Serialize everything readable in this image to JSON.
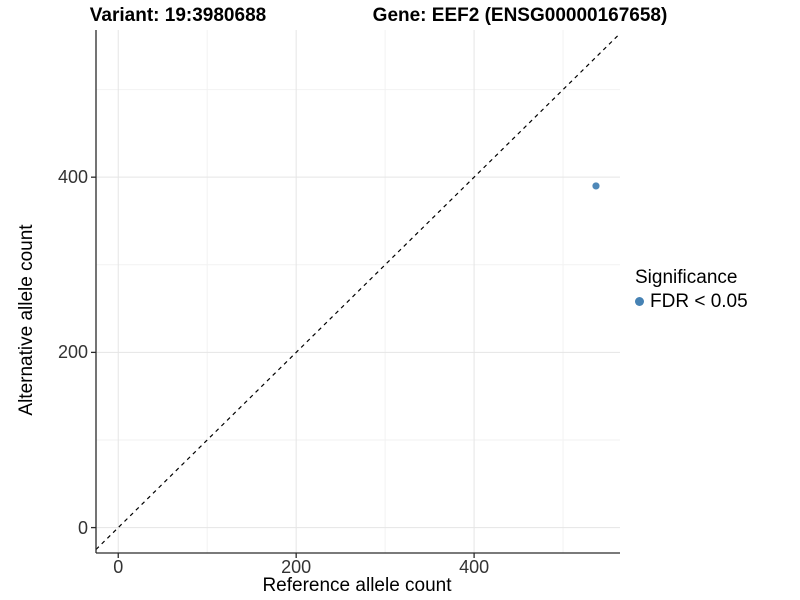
{
  "header": {
    "variant_title": "Variant: 19:3980688",
    "gene_title": "Gene: EEF2 (ENSG00000167658)"
  },
  "legend": {
    "title": "Significance",
    "items": [
      {
        "label": "FDR < 0.05",
        "color": "#4682b4",
        "marker": "dot-icon"
      }
    ]
  },
  "chart_data": {
    "type": "scatter",
    "title": "Variant: 19:3980688 — Gene: EEF2 (ENSG00000167658)",
    "xlabel": "Reference allele count",
    "ylabel": "Alternative allele count",
    "xlim": [
      -25,
      564
    ],
    "ylim": [
      -29,
      568
    ],
    "x_ticks": [
      0,
      200,
      400
    ],
    "y_ticks": [
      0,
      200,
      400
    ],
    "x_minor_ticks": [
      100,
      300,
      500
    ],
    "y_minor_ticks": [
      100,
      300,
      500
    ],
    "grid": "major and minor gridlines, white background",
    "legend_position": "right",
    "reference_line": {
      "type": "identity y=x",
      "style": "dashed",
      "color": "#000000",
      "slope": 1,
      "intercept": 0
    },
    "series": [
      {
        "name": "FDR < 0.05",
        "color": "#4682b4",
        "points": [
          {
            "x": 537,
            "y": 390
          }
        ]
      }
    ]
  },
  "colors": {
    "background": "#ffffff",
    "grid_major": "#e5e5e5",
    "grid_minor": "#f2f2f2",
    "axis_line": "#2a2a2a",
    "tick_text": "#333333",
    "point": "#4682b4"
  }
}
